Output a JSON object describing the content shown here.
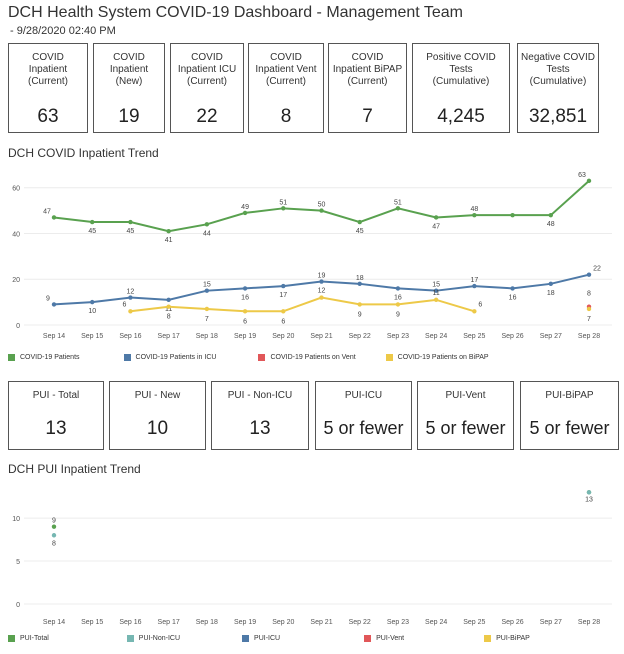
{
  "header": {
    "title": "DCH Health System COVID-19 Dashboard - Management Team",
    "subtitle": "- 9/28/2020 02:40 PM"
  },
  "kpis_top": [
    {
      "label": "COVID\nInpatient\n(Current)",
      "value": "63"
    },
    {
      "label": "COVID\nInpatient\n(New)",
      "value": "19"
    },
    {
      "label": "COVID\nInpatient ICU\n(Current)",
      "value": "22"
    },
    {
      "label": "COVID\nInpatient Vent\n(Current)",
      "value": "8"
    },
    {
      "label": "COVID\nInpatient BiPAP\n(Current)",
      "value": "7"
    },
    {
      "label": "Positive COVID\nTests\n(Cumulative)",
      "value": "4,245"
    },
    {
      "label": "Negative COVID\nTests\n(Cumulative)",
      "value": "32,851"
    }
  ],
  "kpis_pui": [
    {
      "label": "PUI - Total",
      "value": "13"
    },
    {
      "label": "PUI - New",
      "value": "10"
    },
    {
      "label": "PUI - Non-ICU",
      "value": "13"
    },
    {
      "label": "PUI-ICU",
      "value": "5 or fewer"
    },
    {
      "label": "PUI-Vent",
      "value": "5 or fewer"
    },
    {
      "label": "PUI-BiPAP",
      "value": "5 or fewer"
    }
  ],
  "colors": {
    "green": "#59a14f",
    "blue": "#4e79a7",
    "red": "#e15759",
    "yellow": "#edc948",
    "teal": "#76b7b2"
  },
  "chart_data": [
    {
      "type": "line",
      "title": "DCH COVID Inpatient Trend",
      "categories": [
        "Sep 14",
        "Sep 15",
        "Sep 16",
        "Sep 17",
        "Sep 18",
        "Sep 19",
        "Sep 20",
        "Sep 21",
        "Sep 22",
        "Sep 23",
        "Sep 24",
        "Sep 25",
        "Sep 26",
        "Sep 27",
        "Sep 28"
      ],
      "yticks": [
        0,
        20,
        40,
        60
      ],
      "ylim": [
        0,
        66
      ],
      "legend_position": "bottom",
      "series": [
        {
          "name": "COVID-19 Patients",
          "color": "#59a14f",
          "values": [
            47,
            45,
            45,
            41,
            44,
            49,
            51,
            50,
            45,
            51,
            47,
            48,
            48,
            48,
            63
          ],
          "labels": [
            "47",
            "45",
            "45",
            "41",
            "44",
            "49",
            "51",
            "50",
            "45",
            "51",
            "47",
            "48",
            "",
            "48",
            "63"
          ]
        },
        {
          "name": "COVID-19 Patients in ICU",
          "color": "#4e79a7",
          "values": [
            9,
            10,
            12,
            11,
            15,
            16,
            17,
            19,
            18,
            16,
            15,
            17,
            16,
            18,
            22
          ],
          "labels": [
            "9",
            "10",
            "12",
            "11",
            "15",
            "16",
            "17",
            "19",
            "18",
            "16",
            "15",
            "17",
            "16",
            "18",
            "22"
          ]
        },
        {
          "name": "COVID-19 Patients on Vent",
          "color": "#e15759",
          "values": [
            null,
            null,
            null,
            null,
            null,
            null,
            null,
            null,
            null,
            null,
            null,
            null,
            null,
            null,
            8
          ],
          "labels": [
            "",
            "",
            "",
            "",
            "",
            "",
            "",
            "",
            "",
            "",
            "",
            "",
            "",
            "",
            "8"
          ]
        },
        {
          "name": "COVID-19 Patients on BiPAP",
          "color": "#edc948",
          "values": [
            null,
            null,
            6,
            8,
            7,
            6,
            6,
            12,
            9,
            9,
            11,
            6,
            null,
            null,
            7
          ],
          "labels": [
            "",
            "",
            "6",
            "8",
            "7",
            "6",
            "6",
            "12",
            "9",
            "9",
            "11",
            "6",
            "",
            "",
            "7"
          ]
        }
      ]
    },
    {
      "type": "scatter",
      "title": "DCH PUI Inpatient Trend",
      "categories": [
        "Sep 14",
        "Sep 15",
        "Sep 16",
        "Sep 17",
        "Sep 18",
        "Sep 19",
        "Sep 20",
        "Sep 21",
        "Sep 22",
        "Sep 23",
        "Sep 24",
        "Sep 25",
        "Sep 26",
        "Sep 27",
        "Sep 28"
      ],
      "yticks": [
        0,
        5,
        10
      ],
      "ylim": [
        0,
        13.5
      ],
      "legend_position": "bottom",
      "series": [
        {
          "name": "PUI-Total",
          "color": "#59a14f",
          "values": [
            9,
            null,
            null,
            null,
            null,
            null,
            null,
            null,
            null,
            null,
            null,
            null,
            null,
            null,
            13
          ],
          "labels": [
            "9",
            "",
            "",
            "",
            "",
            "",
            "",
            "",
            "",
            "",
            "",
            "",
            "",
            "",
            "13"
          ]
        },
        {
          "name": "PUI-Non-ICU",
          "color": "#76b7b2",
          "values": [
            8,
            null,
            null,
            null,
            null,
            null,
            null,
            null,
            null,
            null,
            null,
            null,
            null,
            null,
            13
          ],
          "labels": [
            "8",
            "",
            "",
            "",
            "",
            "",
            "",
            "",
            "",
            "",
            "",
            "",
            "",
            "",
            ""
          ]
        },
        {
          "name": "PUI-ICU",
          "color": "#4e79a7",
          "values": [
            null,
            null,
            null,
            null,
            null,
            null,
            null,
            null,
            null,
            null,
            null,
            null,
            null,
            null,
            null
          ],
          "labels": [
            "",
            "",
            "",
            "",
            "",
            "",
            "",
            "",
            "",
            "",
            "",
            "",
            "",
            "",
            ""
          ]
        },
        {
          "name": "PUI-Vent",
          "color": "#e15759",
          "values": [
            null,
            null,
            null,
            null,
            null,
            null,
            null,
            null,
            null,
            null,
            null,
            null,
            null,
            null,
            null
          ],
          "labels": [
            "",
            "",
            "",
            "",
            "",
            "",
            "",
            "",
            "",
            "",
            "",
            "",
            "",
            "",
            ""
          ]
        },
        {
          "name": "PUI-BiPAP",
          "color": "#edc948",
          "values": [
            null,
            null,
            null,
            null,
            null,
            null,
            null,
            null,
            null,
            null,
            null,
            null,
            null,
            null,
            null
          ],
          "labels": [
            "",
            "",
            "",
            "",
            "",
            "",
            "",
            "",
            "",
            "",
            "",
            "",
            "",
            "",
            ""
          ]
        }
      ]
    }
  ]
}
